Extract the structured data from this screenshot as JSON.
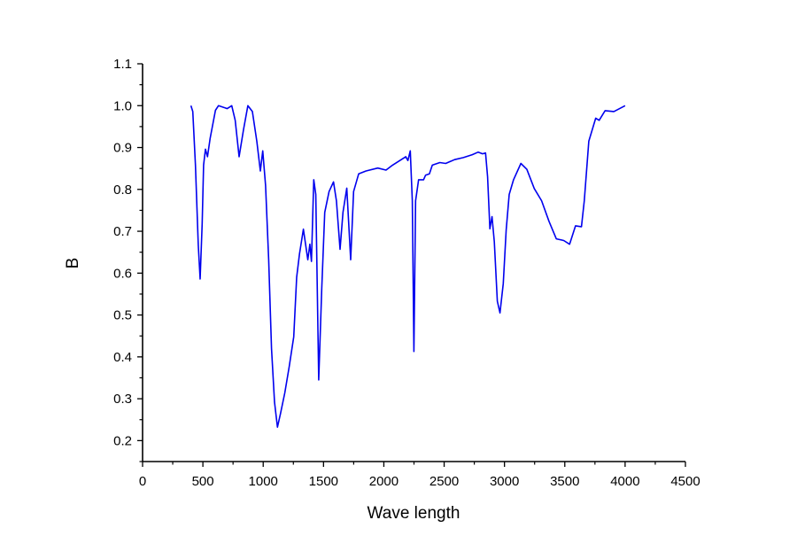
{
  "chart_data": {
    "type": "line",
    "title": "",
    "xlabel": "Wave length",
    "ylabel": "B",
    "xlim": [
      0,
      4500
    ],
    "ylim": [
      0.15,
      1.1
    ],
    "xticks": [
      0,
      500,
      1000,
      1500,
      2000,
      2500,
      3000,
      3500,
      4000,
      4500
    ],
    "yticks": [
      0.2,
      0.3,
      0.4,
      0.5,
      0.6,
      0.7,
      0.8,
      0.9,
      1.0,
      1.1
    ],
    "xtick_labels": [
      "0",
      "500",
      "1000",
      "1500",
      "2000",
      "2500",
      "3000",
      "3500",
      "4000",
      "4500"
    ],
    "ytick_labels": [
      "0.2",
      "0.3",
      "0.4",
      "0.5",
      "0.6",
      "0.7",
      "0.8",
      "0.9",
      "1.0",
      "1.1"
    ],
    "grid": false,
    "legend": "none",
    "series": [
      {
        "name": "B",
        "color": "#0000ee",
        "x": [
          401,
          416,
          438,
          462,
          477,
          494,
          506,
          521,
          538,
          560,
          604,
          629,
          702,
          739,
          768,
          800,
          837,
          873,
          910,
          947,
          976,
          996,
          1020,
          1045,
          1069,
          1094,
          1118,
          1143,
          1179,
          1216,
          1253,
          1277,
          1301,
          1333,
          1370,
          1387,
          1400,
          1419,
          1436,
          1460,
          1485,
          1510,
          1546,
          1583,
          1607,
          1637,
          1661,
          1693,
          1725,
          1749,
          1791,
          1852,
          1950,
          2018,
          2072,
          2182,
          2199,
          2219,
          2236,
          2249,
          2263,
          2288,
          2329,
          2346,
          2378,
          2402,
          2464,
          2513,
          2586,
          2659,
          2733,
          2782,
          2818,
          2843,
          2860,
          2879,
          2897,
          2916,
          2941,
          2963,
          2990,
          3014,
          3039,
          3075,
          3136,
          3185,
          3247,
          3308,
          3369,
          3430,
          3491,
          3540,
          3589,
          3638,
          3662,
          3699,
          3756,
          3785,
          3834,
          3907,
          4000
        ],
        "y": [
          1.0,
          0.986,
          0.858,
          0.667,
          0.586,
          0.718,
          0.858,
          0.896,
          0.878,
          0.922,
          0.989,
          1.0,
          0.993,
          1.0,
          0.965,
          0.878,
          0.943,
          1.0,
          0.986,
          0.915,
          0.844,
          0.892,
          0.809,
          0.632,
          0.42,
          0.292,
          0.232,
          0.264,
          0.314,
          0.377,
          0.448,
          0.59,
          0.646,
          0.705,
          0.632,
          0.669,
          0.628,
          0.823,
          0.788,
          0.345,
          0.561,
          0.745,
          0.795,
          0.818,
          0.773,
          0.657,
          0.745,
          0.803,
          0.632,
          0.795,
          0.837,
          0.844,
          0.851,
          0.846,
          0.858,
          0.878,
          0.869,
          0.892,
          0.773,
          0.413,
          0.773,
          0.823,
          0.823,
          0.834,
          0.837,
          0.858,
          0.864,
          0.862,
          0.871,
          0.876,
          0.883,
          0.889,
          0.885,
          0.887,
          0.83,
          0.706,
          0.735,
          0.675,
          0.533,
          0.505,
          0.575,
          0.703,
          0.788,
          0.823,
          0.862,
          0.848,
          0.802,
          0.773,
          0.724,
          0.682,
          0.678,
          0.669,
          0.713,
          0.711,
          0.773,
          0.915,
          0.97,
          0.965,
          0.988,
          0.986,
          1.0
        ]
      }
    ]
  }
}
